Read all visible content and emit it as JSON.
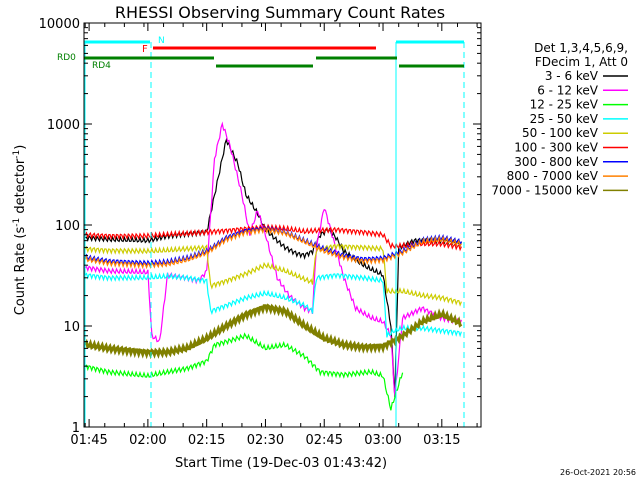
{
  "chart_data": {
    "type": "line",
    "title": "RHESSI Observing Summary Count Rates",
    "xlabel": "Start Time (19-Dec-03 01:43:42)",
    "ylabel_main": "Count Rate (s",
    "ylabel_sup1": "-1",
    "ylabel_mid": " detector",
    "ylabel_sup2": "-1",
    "ylabel_end": ")",
    "y_scale": "log",
    "ylim": [
      1,
      10000
    ],
    "xlim": [
      "01:43:42",
      "03:25:00"
    ],
    "x_ticks": [
      "01:45",
      "02:00",
      "02:15",
      "02:30",
      "02:45",
      "03:00",
      "03:15"
    ],
    "y_ticks": [
      "1",
      "10",
      "100",
      "1000",
      "10000"
    ],
    "footer_date": "26-Oct-2021 20:56",
    "legend": {
      "header_line1": "Det 1,3,4,5,6,9,",
      "header_line2": "FDecim 1, Att 0",
      "placement": "right"
    },
    "flags": [
      {
        "label": "N",
        "color": "#00ffff"
      },
      {
        "label": "F",
        "color": "#ff0000"
      },
      {
        "label": "RD0",
        "color": "#008000"
      },
      {
        "label": "RD4",
        "color": "#008000"
      }
    ],
    "series": [
      {
        "name": "3 - 6 keV",
        "color": "#000000",
        "points": [
          [
            "01:44",
            75
          ],
          [
            "01:50",
            72
          ],
          [
            "02:00",
            70
          ],
          [
            "02:05",
            78
          ],
          [
            "02:10",
            82
          ],
          [
            "02:15",
            85
          ],
          [
            "02:18",
            300
          ],
          [
            "02:20",
            700
          ],
          [
            "02:23",
            400
          ],
          [
            "02:25",
            200
          ],
          [
            "02:28",
            130
          ],
          [
            "02:30",
            90
          ],
          [
            "02:33",
            70
          ],
          [
            "02:35",
            60
          ],
          [
            "02:38",
            52
          ],
          [
            "02:40",
            50
          ],
          [
            "02:42",
            55
          ],
          [
            "02:44",
            80
          ],
          [
            "02:46",
            90
          ],
          [
            "02:48",
            75
          ],
          [
            "02:50",
            55
          ],
          [
            "02:53",
            45
          ],
          [
            "02:56",
            38
          ],
          [
            "03:00",
            32
          ],
          [
            "03:02",
            10
          ],
          [
            "03:03",
            2
          ],
          [
            "03:04",
            60
          ],
          [
            "03:08",
            70
          ],
          [
            "03:12",
            72
          ],
          [
            "03:16",
            70
          ],
          [
            "03:20",
            65
          ]
        ]
      },
      {
        "name": "6 - 12 keV",
        "color": "#ff00ff",
        "points": [
          [
            "01:44",
            38
          ],
          [
            "01:50",
            35
          ],
          [
            "02:00",
            34
          ],
          [
            "02:01",
            8
          ],
          [
            "02:03",
            7
          ],
          [
            "02:05",
            32
          ],
          [
            "02:10",
            30
          ],
          [
            "02:13",
            28
          ],
          [
            "02:15",
            35
          ],
          [
            "02:17",
            450
          ],
          [
            "02:19",
            1000
          ],
          [
            "02:21",
            600
          ],
          [
            "02:24",
            200
          ],
          [
            "02:26",
            80
          ],
          [
            "02:28",
            140
          ],
          [
            "02:30",
            80
          ],
          [
            "02:33",
            30
          ],
          [
            "02:36",
            20
          ],
          [
            "02:40",
            15
          ],
          [
            "02:42",
            14
          ],
          [
            "02:43",
            60
          ],
          [
            "02:45",
            150
          ],
          [
            "02:47",
            80
          ],
          [
            "02:50",
            30
          ],
          [
            "02:53",
            15
          ],
          [
            "02:57",
            12
          ],
          [
            "03:00",
            11
          ],
          [
            "03:02",
            8
          ],
          [
            "03:03",
            2
          ],
          [
            "03:05",
            12
          ],
          [
            "03:10",
            15
          ],
          [
            "03:15",
            12
          ],
          [
            "03:20",
            11
          ]
        ]
      },
      {
        "name": "12 - 25 keV",
        "color": "#00ff00",
        "points": [
          [
            "01:44",
            4
          ],
          [
            "01:50",
            3.5
          ],
          [
            "02:00",
            3.2
          ],
          [
            "02:05",
            3.5
          ],
          [
            "02:10",
            3.8
          ],
          [
            "02:15",
            4.5
          ],
          [
            "02:17",
            6.5
          ],
          [
            "02:20",
            7
          ],
          [
            "02:25",
            8
          ],
          [
            "02:30",
            6
          ],
          [
            "02:35",
            6.5
          ],
          [
            "02:40",
            5
          ],
          [
            "02:44",
            3.5
          ],
          [
            "02:50",
            3.3
          ],
          [
            "02:57",
            3.5
          ],
          [
            "03:00",
            3.2
          ],
          [
            "03:02",
            1.5
          ],
          [
            "03:05",
            3.5
          ]
        ]
      },
      {
        "name": "25 - 50 keV",
        "color": "#00ffff",
        "points": [
          [
            "01:44",
            32
          ],
          [
            "01:50",
            30
          ],
          [
            "02:00",
            30
          ],
          [
            "02:05",
            31
          ],
          [
            "02:10",
            30
          ],
          [
            "02:15",
            28
          ],
          [
            "02:16",
            14
          ],
          [
            "02:20",
            16
          ],
          [
            "02:25",
            19
          ],
          [
            "02:30",
            21
          ],
          [
            "02:35",
            19
          ],
          [
            "02:40",
            16
          ],
          [
            "02:42",
            14
          ],
          [
            "02:43",
            30
          ],
          [
            "02:48",
            32
          ],
          [
            "02:55",
            30
          ],
          [
            "03:00",
            28
          ],
          [
            "03:01",
            8
          ],
          [
            "03:03",
            9
          ],
          [
            "03:05",
            9.5
          ],
          [
            "03:10",
            9.5
          ],
          [
            "03:15",
            9
          ],
          [
            "03:20",
            8.5
          ]
        ]
      },
      {
        "name": "50 - 100 keV",
        "color": "#cccc00",
        "points": [
          [
            "01:44",
            58
          ],
          [
            "01:50",
            56
          ],
          [
            "02:00",
            55
          ],
          [
            "02:05",
            56
          ],
          [
            "02:10",
            58
          ],
          [
            "02:15",
            60
          ],
          [
            "02:16",
            25
          ],
          [
            "02:20",
            28
          ],
          [
            "02:25",
            33
          ],
          [
            "02:30",
            40
          ],
          [
            "02:35",
            35
          ],
          [
            "02:40",
            29
          ],
          [
            "02:42",
            27
          ],
          [
            "02:43",
            57
          ],
          [
            "02:48",
            62
          ],
          [
            "02:55",
            60
          ],
          [
            "03:00",
            58
          ],
          [
            "03:01",
            22
          ],
          [
            "03:05",
            22
          ],
          [
            "03:10",
            20
          ],
          [
            "03:15",
            19
          ],
          [
            "03:20",
            17
          ]
        ]
      },
      {
        "name": "100 - 300 keV",
        "color": "#ff0000",
        "points": [
          [
            "01:44",
            80
          ],
          [
            "01:50",
            78
          ],
          [
            "02:00",
            78
          ],
          [
            "02:05",
            80
          ],
          [
            "02:10",
            82
          ],
          [
            "02:15",
            85
          ],
          [
            "02:20",
            88
          ],
          [
            "02:25",
            92
          ],
          [
            "02:30",
            95
          ],
          [
            "02:35",
            92
          ],
          [
            "02:40",
            86
          ],
          [
            "02:43",
            88
          ],
          [
            "02:48",
            90
          ],
          [
            "02:55",
            85
          ],
          [
            "03:00",
            80
          ],
          [
            "03:02",
            62
          ],
          [
            "03:05",
            62
          ],
          [
            "03:10",
            65
          ],
          [
            "03:15",
            65
          ],
          [
            "03:20",
            60
          ]
        ]
      },
      {
        "name": "300 - 800 keV",
        "color": "#0000ff",
        "points": [
          [
            "01:44",
            48
          ],
          [
            "01:50",
            44
          ],
          [
            "02:00",
            42
          ],
          [
            "02:05",
            43
          ],
          [
            "02:10",
            47
          ],
          [
            "02:15",
            55
          ],
          [
            "02:20",
            75
          ],
          [
            "02:25",
            88
          ],
          [
            "02:30",
            92
          ],
          [
            "02:35",
            85
          ],
          [
            "02:40",
            70
          ],
          [
            "02:45",
            58
          ],
          [
            "02:50",
            50
          ],
          [
            "02:55",
            46
          ],
          [
            "03:00",
            47
          ],
          [
            "03:05",
            55
          ],
          [
            "03:10",
            70
          ],
          [
            "03:15",
            75
          ],
          [
            "03:20",
            68
          ]
        ]
      },
      {
        "name": "800 - 7000 keV",
        "color": "#ff8000",
        "points": [
          [
            "01:44",
            46
          ],
          [
            "01:50",
            42
          ],
          [
            "02:00",
            40
          ],
          [
            "02:05",
            41
          ],
          [
            "02:10",
            45
          ],
          [
            "02:15",
            53
          ],
          [
            "02:20",
            72
          ],
          [
            "02:25",
            85
          ],
          [
            "02:30",
            90
          ],
          [
            "02:35",
            83
          ],
          [
            "02:40",
            68
          ],
          [
            "02:45",
            55
          ],
          [
            "02:50",
            48
          ],
          [
            "02:55",
            44
          ],
          [
            "03:00",
            45
          ],
          [
            "03:05",
            53
          ],
          [
            "03:10",
            68
          ],
          [
            "03:15",
            72
          ],
          [
            "03:20",
            65
          ]
        ]
      },
      {
        "name": "7000 - 15000 keV",
        "color": "#808000",
        "points": [
          [
            "01:44",
            6.5
          ],
          [
            "01:50",
            6
          ],
          [
            "02:00",
            5.5
          ],
          [
            "02:05",
            5.5
          ],
          [
            "02:10",
            6
          ],
          [
            "02:15",
            7.5
          ],
          [
            "02:20",
            10
          ],
          [
            "02:25",
            13
          ],
          [
            "02:30",
            15.5
          ],
          [
            "02:35",
            14
          ],
          [
            "02:40",
            10
          ],
          [
            "02:45",
            7.5
          ],
          [
            "02:50",
            6.5
          ],
          [
            "02:55",
            6.2
          ],
          [
            "03:00",
            6.3
          ],
          [
            "03:05",
            8
          ],
          [
            "03:10",
            11
          ],
          [
            "03:15",
            13
          ],
          [
            "03:20",
            10.5
          ]
        ]
      }
    ]
  }
}
